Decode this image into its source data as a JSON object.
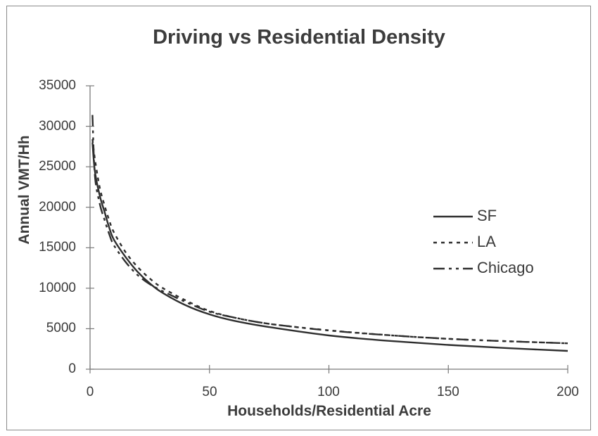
{
  "chart_data": {
    "type": "line",
    "title": "Driving vs Residential Density",
    "xlabel": "Households/Residential Acre",
    "ylabel": "Annual VMT/Hh",
    "xlim": [
      0,
      200
    ],
    "ylim": [
      0,
      35000
    ],
    "xticks": [
      0,
      50,
      100,
      150,
      200
    ],
    "yticks": [
      0,
      5000,
      10000,
      15000,
      20000,
      25000,
      30000,
      35000
    ],
    "grid": false,
    "legend_position": "right-center",
    "x": [
      1,
      2,
      4,
      6,
      8,
      10,
      15,
      20,
      25,
      30,
      40,
      50,
      60,
      75,
      100,
      125,
      150,
      175,
      200
    ],
    "series": [
      {
        "name": "SF",
        "style": "solid",
        "values": [
          28000,
          24500,
          21500,
          19500,
          17500,
          16000,
          13800,
          12000,
          10600,
          9500,
          7900,
          6770,
          6000,
          5200,
          4170,
          3500,
          3000,
          2600,
          2260
        ]
      },
      {
        "name": "LA",
        "style": "dotted",
        "values": [
          28400,
          26000,
          22500,
          20300,
          18400,
          16900,
          14400,
          12600,
          11200,
          10100,
          8500,
          7200,
          6400,
          5600,
          4800,
          4200,
          3750,
          3450,
          3200
        ]
      },
      {
        "name": "Chicago",
        "style": "dash-dot",
        "values": [
          31400,
          24000,
          20500,
          18500,
          16700,
          15300,
          13200,
          11600,
          10500,
          9700,
          8300,
          7100,
          6400,
          5600,
          4780,
          4200,
          3750,
          3450,
          3200
        ]
      }
    ],
    "colors": {
      "line": "#2e2e2e",
      "axis": "#7a7a7a",
      "frame": "#8a8a8a"
    }
  },
  "legend": {
    "items": [
      {
        "label": "SF"
      },
      {
        "label": "LA"
      },
      {
        "label": "Chicago"
      }
    ]
  },
  "axis": {
    "ytick_labels": [
      "35000",
      "30000",
      "25000",
      "20000",
      "15000",
      "10000",
      "5000",
      "0"
    ],
    "xtick_labels": [
      "0",
      "50",
      "100",
      "150",
      "200"
    ]
  }
}
